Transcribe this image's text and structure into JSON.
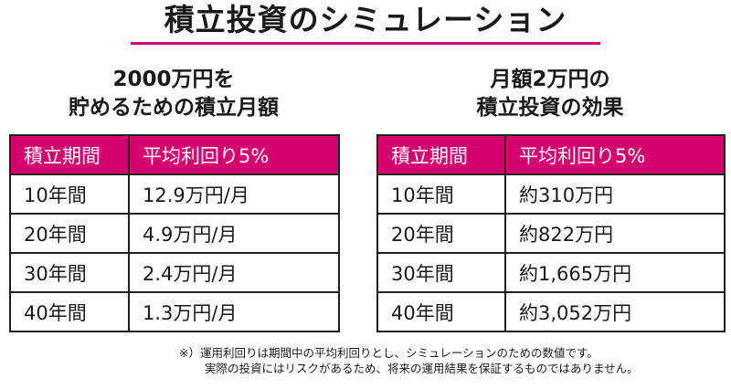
{
  "title": "積立投資のシミュレーション",
  "colors": {
    "accent": "#d4006f",
    "header_text": "#ffffff",
    "border": "#1f1f1f"
  },
  "left_panel": {
    "heading_line1": "2000万円を",
    "heading_line2": "貯めるための積立月額",
    "columns": [
      "積立期間",
      "平均利回り5%"
    ],
    "rows": [
      [
        "10年間",
        "12.9万円/月"
      ],
      [
        "20年間",
        "4.9万円/月"
      ],
      [
        "30年間",
        "2.4万円/月"
      ],
      [
        "40年間",
        "1.3万円/月"
      ]
    ]
  },
  "right_panel": {
    "heading_line1": "月額2万円の",
    "heading_line2": "積立投資の効果",
    "columns": [
      "積立期間",
      "平均利回り5%"
    ],
    "rows": [
      [
        "10年間",
        "約310万円"
      ],
      [
        "20年間",
        "約822万円"
      ],
      [
        "30年間",
        "約1,665万円"
      ],
      [
        "40年間",
        "約3,052万円"
      ]
    ]
  },
  "footnote": {
    "line1": "※）運用利回りは期間中の平均利回りとし、シミュレーションのための数値です。",
    "line2": "実際の投資にはリスクがあるため、将来の運用結果を保証するものではありません。"
  }
}
